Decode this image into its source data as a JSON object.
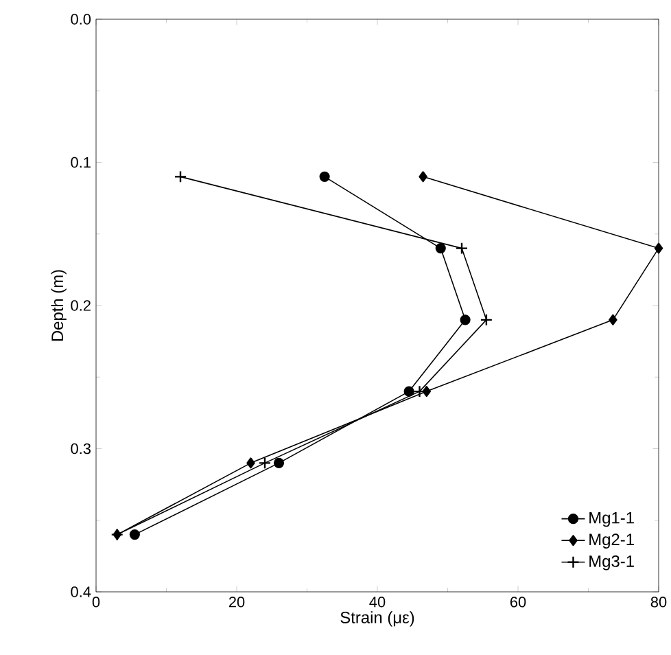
{
  "chart_data": {
    "type": "line",
    "xlabel": "Strain (με)",
    "ylabel": "Depth (m)",
    "xlim": [
      0,
      80
    ],
    "xticks": [
      0,
      20,
      40,
      60,
      80
    ],
    "ylim": [
      0.4,
      0.0
    ],
    "yticks": [
      {
        "value": 0,
        "label": "0.0"
      },
      0.1,
      0.2,
      0.3,
      0.4
    ],
    "legend": "bottom right",
    "grid": false,
    "series": [
      {
        "name": "Mg1-1",
        "color": "#000000",
        "marker": "circle",
        "x": [
          32.5,
          49,
          52.5,
          44.5,
          26,
          5.5
        ],
        "values": [
          0.11,
          0.16,
          0.21,
          0.26,
          0.31,
          0.36
        ]
      },
      {
        "name": "Mg2-1",
        "color": "#000000",
        "marker": "diamond",
        "x": [
          46.5,
          80,
          73.5,
          47,
          22,
          3
        ],
        "values": [
          0.11,
          0.16,
          0.21,
          0.26,
          0.31,
          0.36
        ]
      },
      {
        "name": "Mg3-1",
        "color": "#000000",
        "marker": "cross",
        "x": [
          12,
          52,
          55.5,
          46,
          24,
          3
        ],
        "values": [
          0.11,
          0.16,
          0.21,
          0.26,
          0.31,
          0.36
        ]
      }
    ]
  }
}
